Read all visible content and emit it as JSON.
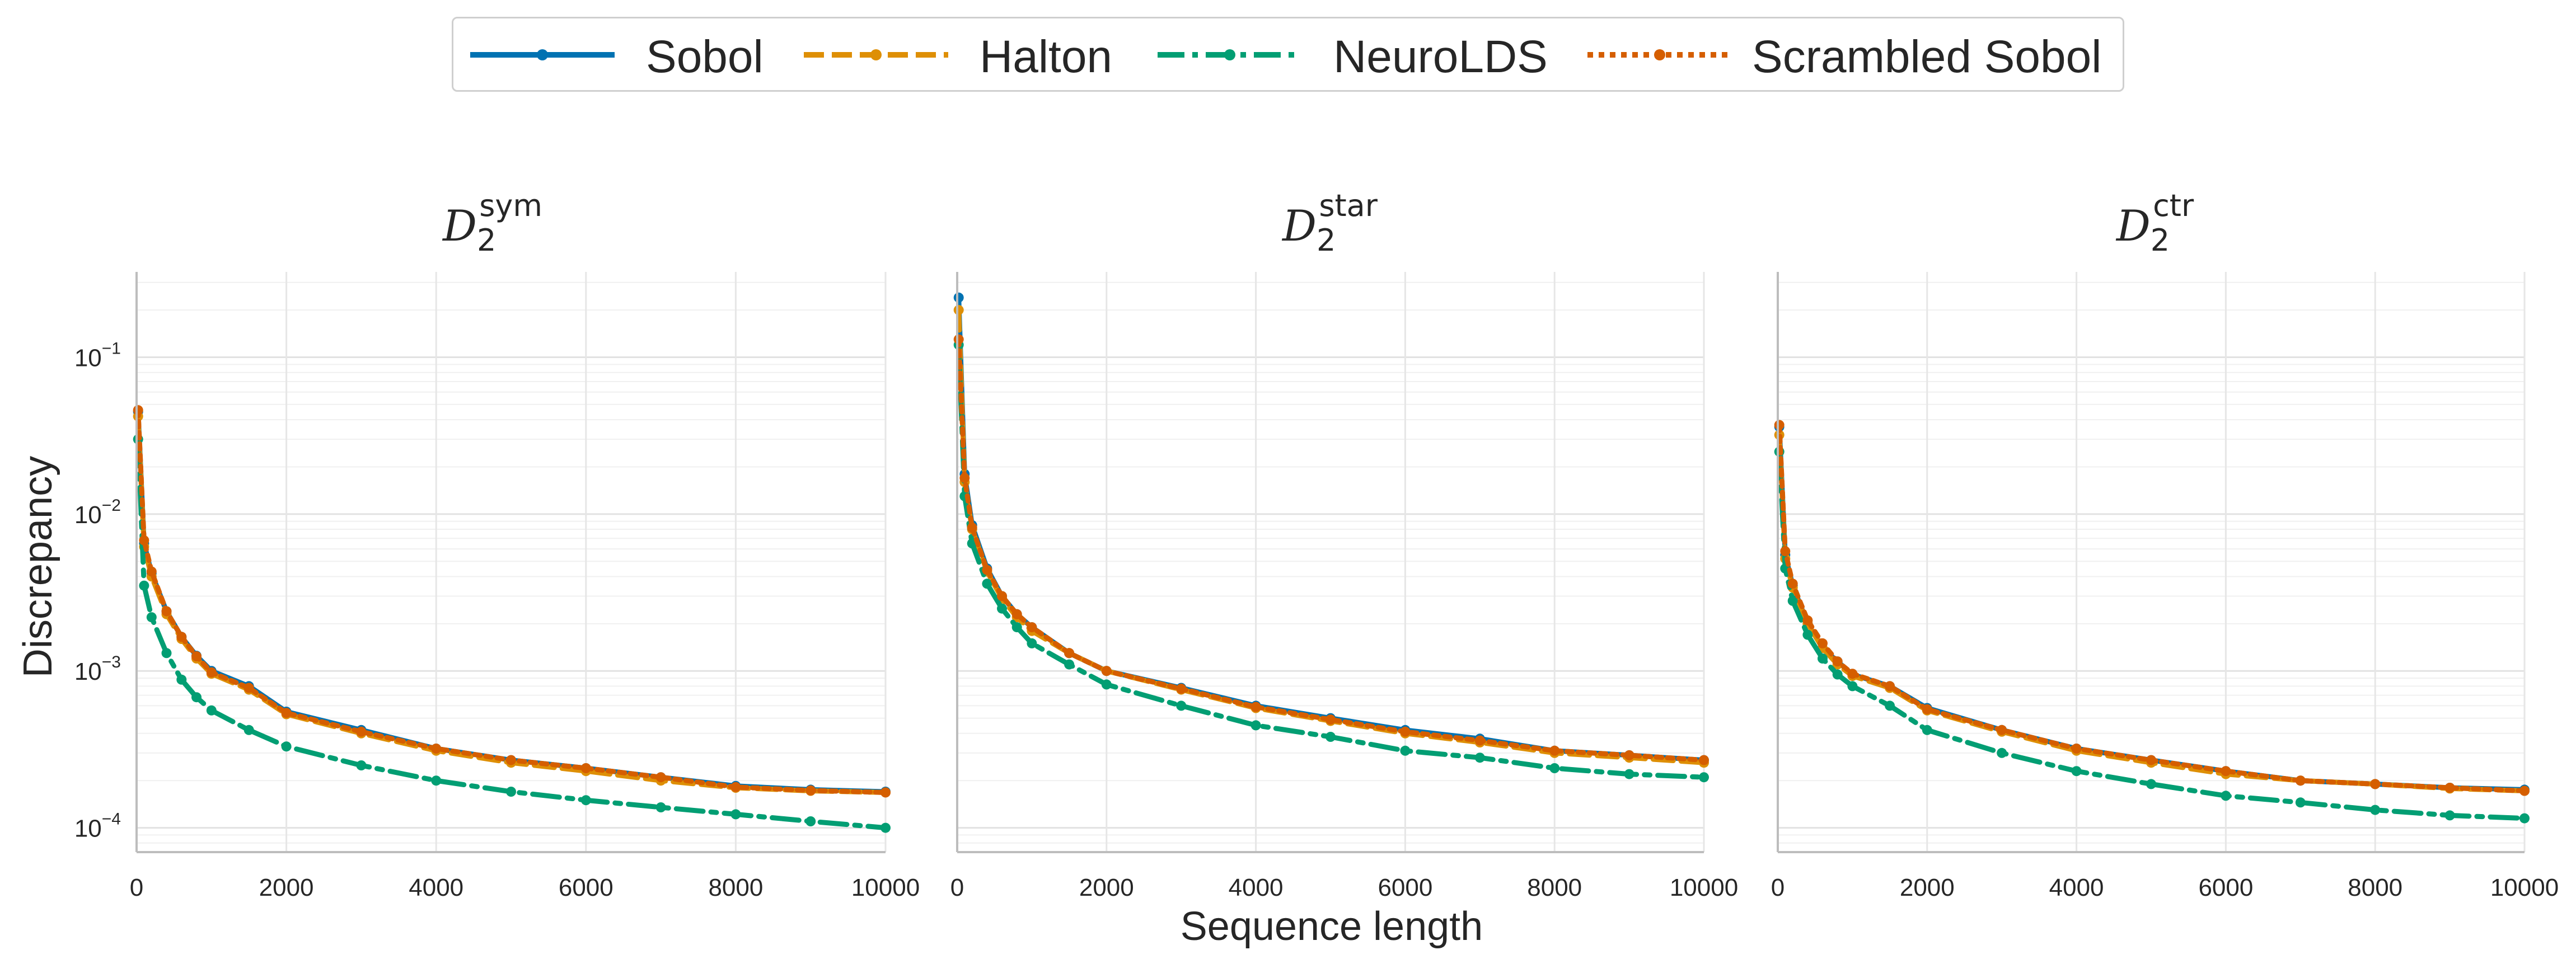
{
  "figure": {
    "ylabel": "Discrepancy",
    "xlabel": "Sequence length"
  },
  "colors": {
    "Sobol": "#0072b2",
    "Halton": "#de8f05",
    "NeuroLDS": "#029e73",
    "Scrambled Sobol": "#d55e00"
  },
  "legend": {
    "items": [
      "Sobol",
      "Halton",
      "NeuroLDS",
      "Scrambled Sobol"
    ]
  },
  "chart_data": [
    {
      "type": "line",
      "title": "D_2^sym",
      "title_main": "D",
      "title_sub": "2",
      "title_sup": "sym",
      "yscale": "log",
      "xlim": [
        0,
        10000
      ],
      "ylim": [
        7e-05,
        0.35
      ],
      "xticks": [
        0,
        2000,
        4000,
        6000,
        8000,
        10000
      ],
      "yticks": [
        {
          "value": 0.1,
          "base": "10",
          "exp": "−1"
        },
        {
          "value": 0.01,
          "base": "10",
          "exp": "−2"
        },
        {
          "value": 0.001,
          "base": "10",
          "exp": "−3"
        },
        {
          "value": 0.0001,
          "base": "10",
          "exp": "−4"
        }
      ],
      "grid": true,
      "x": [
        20,
        100,
        200,
        400,
        600,
        800,
        1000,
        1500,
        2000,
        3000,
        4000,
        5000,
        6000,
        7000,
        8000,
        9000,
        10000
      ],
      "series": [
        {
          "name": "Sobol",
          "values": [
            0.045,
            0.0065,
            0.0042,
            0.0024,
            0.00165,
            0.00125,
            0.001,
            0.0008,
            0.00055,
            0.00042,
            0.00032,
            0.00027,
            0.00024,
            0.00021,
            0.000185,
            0.000175,
            0.00017
          ]
        },
        {
          "name": "Halton",
          "values": [
            0.042,
            0.0062,
            0.004,
            0.0023,
            0.0016,
            0.0012,
            0.00096,
            0.00076,
            0.00053,
            0.0004,
            0.00031,
            0.00026,
            0.00023,
            0.0002,
            0.00018,
            0.000172,
            0.000168
          ]
        },
        {
          "name": "NeuroLDS",
          "values": [
            0.03,
            0.0035,
            0.0022,
            0.0013,
            0.00088,
            0.00068,
            0.00056,
            0.00042,
            0.00033,
            0.00025,
            0.0002,
            0.00017,
            0.00015,
            0.000135,
            0.000122,
            0.00011,
            0.0001
          ]
        },
        {
          "name": "Scrambled Sobol",
          "values": [
            0.046,
            0.0068,
            0.0043,
            0.0024,
            0.00165,
            0.00124,
            0.00098,
            0.00078,
            0.00054,
            0.00041,
            0.00032,
            0.00027,
            0.00024,
            0.00021,
            0.000182,
            0.000173,
            0.000168
          ]
        }
      ]
    },
    {
      "type": "line",
      "title": "D_2^star",
      "title_main": "D",
      "title_sub": "2",
      "title_sup": "star",
      "yscale": "log",
      "xlim": [
        0,
        10000
      ],
      "ylim": [
        7e-05,
        0.35
      ],
      "xticks": [
        0,
        2000,
        4000,
        6000,
        8000,
        10000
      ],
      "yticks": [],
      "grid": true,
      "x": [
        20,
        100,
        200,
        400,
        600,
        800,
        1000,
        1500,
        2000,
        3000,
        4000,
        5000,
        6000,
        7000,
        8000,
        9000,
        10000
      ],
      "series": [
        {
          "name": "Sobol",
          "values": [
            0.24,
            0.018,
            0.0085,
            0.0045,
            0.003,
            0.0023,
            0.0019,
            0.0013,
            0.001,
            0.00078,
            0.0006,
            0.0005,
            0.00042,
            0.00037,
            0.00031,
            0.00029,
            0.00027
          ]
        },
        {
          "name": "Halton",
          "values": [
            0.2,
            0.016,
            0.008,
            0.0043,
            0.0029,
            0.0022,
            0.0018,
            0.0013,
            0.001,
            0.00076,
            0.00058,
            0.00048,
            0.0004,
            0.00035,
            0.0003,
            0.00028,
            0.00026
          ]
        },
        {
          "name": "NeuroLDS",
          "values": [
            0.12,
            0.013,
            0.0065,
            0.0036,
            0.0025,
            0.0019,
            0.0015,
            0.0011,
            0.00082,
            0.0006,
            0.00045,
            0.00038,
            0.00031,
            0.00028,
            0.00024,
            0.00022,
            0.00021
          ]
        },
        {
          "name": "Scrambled Sobol",
          "values": [
            0.13,
            0.017,
            0.0082,
            0.0044,
            0.003,
            0.0023,
            0.0019,
            0.0013,
            0.001,
            0.00077,
            0.00059,
            0.00049,
            0.00041,
            0.00036,
            0.00031,
            0.00029,
            0.00027
          ]
        }
      ]
    },
    {
      "type": "line",
      "title": "D_2^ctr",
      "title_main": "D",
      "title_sub": "2",
      "title_sup": "ctr",
      "yscale": "log",
      "xlim": [
        0,
        10000
      ],
      "ylim": [
        7e-05,
        0.35
      ],
      "xticks": [
        0,
        2000,
        4000,
        6000,
        8000,
        10000
      ],
      "yticks": [],
      "grid": true,
      "x": [
        20,
        100,
        200,
        400,
        600,
        800,
        1000,
        1500,
        2000,
        3000,
        4000,
        5000,
        6000,
        7000,
        8000,
        9000,
        10000
      ],
      "series": [
        {
          "name": "Sobol",
          "values": [
            0.036,
            0.0055,
            0.0035,
            0.002,
            0.0014,
            0.00115,
            0.00095,
            0.0008,
            0.00058,
            0.00042,
            0.00032,
            0.00027,
            0.00023,
            0.0002,
            0.00019,
            0.00018,
            0.000175
          ]
        },
        {
          "name": "Halton",
          "values": [
            0.032,
            0.0052,
            0.0034,
            0.002,
            0.0014,
            0.0011,
            0.00093,
            0.00078,
            0.00056,
            0.00041,
            0.00031,
            0.00026,
            0.00022,
            0.0002,
            0.00019,
            0.000178,
            0.000172
          ]
        },
        {
          "name": "NeuroLDS",
          "values": [
            0.025,
            0.0045,
            0.0028,
            0.0017,
            0.0012,
            0.00095,
            0.0008,
            0.0006,
            0.00042,
            0.0003,
            0.00023,
            0.00019,
            0.00016,
            0.000145,
            0.00013,
            0.00012,
            0.000115
          ]
        },
        {
          "name": "Scrambled Sobol",
          "values": [
            0.037,
            0.0058,
            0.0036,
            0.0021,
            0.0015,
            0.00115,
            0.00096,
            0.0008,
            0.00057,
            0.00042,
            0.00032,
            0.00027,
            0.00023,
            0.0002,
            0.00019,
            0.00018,
            0.000172
          ]
        }
      ]
    }
  ]
}
